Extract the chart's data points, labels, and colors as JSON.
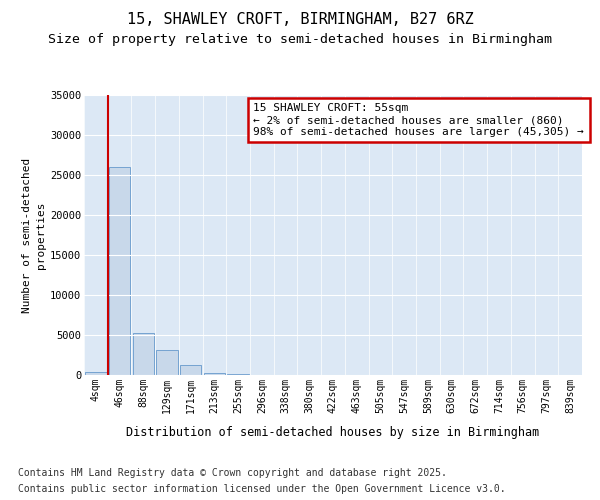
{
  "title_line1": "15, SHAWLEY CROFT, BIRMINGHAM, B27 6RZ",
  "title_line2": "Size of property relative to semi-detached houses in Birmingham",
  "xlabel": "Distribution of semi-detached houses by size in Birmingham",
  "ylabel": "Number of semi-detached\nproperties",
  "footer_line1": "Contains HM Land Registry data © Crown copyright and database right 2025.",
  "footer_line2": "Contains public sector information licensed under the Open Government Licence v3.0.",
  "annotation_title": "15 SHAWLEY CROFT: 55sqm",
  "annotation_line1": "← 2% of semi-detached houses are smaller (860)",
  "annotation_line2": "98% of semi-detached houses are larger (45,305) →",
  "categories": [
    "4sqm",
    "46sqm",
    "88sqm",
    "129sqm",
    "171sqm",
    "213sqm",
    "255sqm",
    "296sqm",
    "338sqm",
    "380sqm",
    "422sqm",
    "463sqm",
    "505sqm",
    "547sqm",
    "589sqm",
    "630sqm",
    "672sqm",
    "714sqm",
    "756sqm",
    "797sqm",
    "839sqm"
  ],
  "bar_values": [
    400,
    26000,
    5200,
    3100,
    1200,
    300,
    100,
    20,
    5,
    2,
    1,
    0,
    0,
    0,
    0,
    0,
    0,
    0,
    0,
    0,
    0
  ],
  "bar_color": "#c8d8ea",
  "bar_edge_color": "#6699cc",
  "vline_color": "#cc0000",
  "vline_x": 0.5,
  "annotation_box_color": "#ffffff",
  "annotation_box_edge": "#cc0000",
  "ylim": [
    0,
    35000
  ],
  "yticks": [
    0,
    5000,
    10000,
    15000,
    20000,
    25000,
    30000,
    35000
  ],
  "background_color": "#ffffff",
  "plot_bg_color": "#dce8f5",
  "grid_color": "#ffffff",
  "title_fontsize": 11,
  "subtitle_fontsize": 9.5,
  "tick_fontsize": 7,
  "ylabel_fontsize": 8,
  "footer_fontsize": 7
}
